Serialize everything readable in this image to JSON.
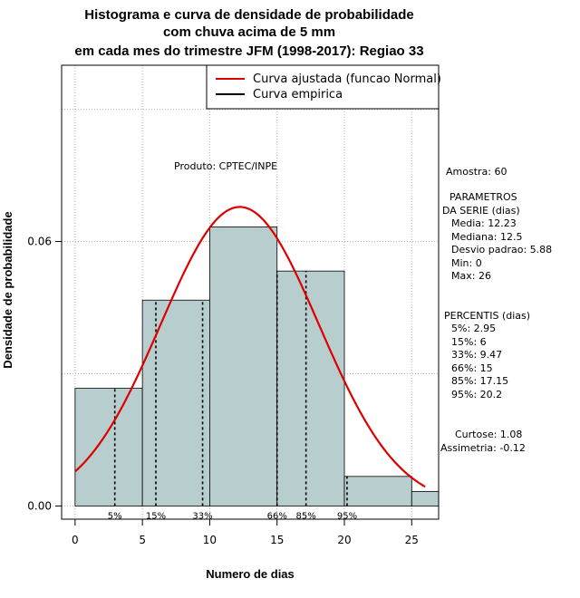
{
  "chart_data": {
    "type": "bar",
    "title_lines": [
      "Histograma e curva de densidade de probabilidade",
      "com chuva acima de 5 mm",
      "em cada mes do trimestre JFM (1998-2017): Regiao 33"
    ],
    "xlabel": "Numero de dias",
    "ylabel": "Densidade de probabilidade",
    "xlim": [
      -1,
      27
    ],
    "ylim": [
      -0.003,
      0.1
    ],
    "x_ticks": [
      0,
      5,
      10,
      15,
      20,
      25
    ],
    "y_ticks": [
      0.0,
      0.06
    ],
    "y_tick_labels": [
      "0.00",
      "0.06"
    ],
    "grid": true,
    "bins": [
      {
        "start": 0,
        "end": 5,
        "density": 0.0267
      },
      {
        "start": 5,
        "end": 10,
        "density": 0.0467
      },
      {
        "start": 10,
        "end": 15,
        "density": 0.0633
      },
      {
        "start": 15,
        "end": 20,
        "density": 0.0533
      },
      {
        "start": 20,
        "end": 25,
        "density": 0.0067
      },
      {
        "start": 25,
        "end": 27,
        "density": 0.0033
      }
    ],
    "fitted_normal": {
      "mean": 12.23,
      "sd": 5.88,
      "x_range": [
        0,
        26
      ],
      "color": "#dd0000"
    },
    "percentile_lines": [
      {
        "label": "5%",
        "x": 2.95
      },
      {
        "label": "15%",
        "x": 6
      },
      {
        "label": "33%",
        "x": 9.47
      },
      {
        "label": "66%",
        "x": 15
      },
      {
        "label": "85%",
        "x": 17.15
      },
      {
        "label": "95%",
        "x": 20.2
      }
    ],
    "legend": {
      "placement": "top-right",
      "entries": [
        {
          "label": "Curva ajustada (funcao Normal)",
          "color": "#dd0000"
        },
        {
          "label": "Curva empirica",
          "color": "#000000"
        }
      ]
    },
    "annotation": "Produto: CPTEC/INPE",
    "bar_color": "#b8cece"
  },
  "stats_panel": {
    "amostra": "Amostra: 60",
    "parametros_title_1": "PARAMETROS",
    "parametros_title_2": "DA SERIE (dias)",
    "parametros": [
      "Media: 12.23",
      "Mediana: 12.5",
      "Desvio padrao: 5.88",
      "Min: 0",
      "Max: 26"
    ],
    "percentis_title": "PERCENTIS (dias)",
    "percentis": [
      "5%: 2.95",
      "15%: 6",
      "33%: 9.47",
      "66%: 15",
      "85%: 17.15",
      "95%: 20.2"
    ],
    "curtose": "Curtose: 1.08",
    "assimetria": "Assimetria: -0.12"
  }
}
